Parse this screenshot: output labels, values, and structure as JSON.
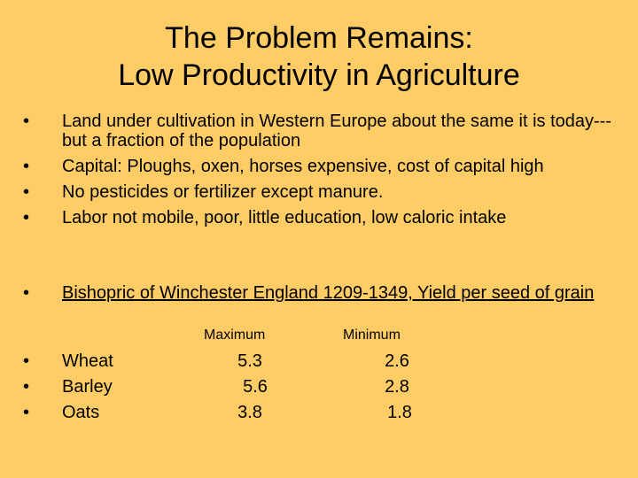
{
  "slide": {
    "title_line1": "The Problem Remains:",
    "title_line2": "Low Productivity in Agriculture",
    "bullets": [
      {
        "text": "Land under cultivation in Western Europe about the same it is today---but a fraction of the population"
      },
      {
        "text": "Capital: Ploughs, oxen, horses expensive, cost of capital high"
      },
      {
        "text": "No pesticides or fertilizer except manure."
      },
      {
        "text": "Labor not mobile, poor, little education, low caloric intake"
      }
    ],
    "bullet_char": "•",
    "winchester": "Bishopric of Winchester England 1209-1349, Yield per seed of grain",
    "table": {
      "headers": {
        "max": "Maximum",
        "min": "Minimum"
      },
      "rows": [
        {
          "crop": "Wheat",
          "max": "5.3",
          "min": "2.6"
        },
        {
          "crop": "Barley",
          "max": "5.6",
          "min": "2.8"
        },
        {
          "crop": "Oats",
          "max": "3.8",
          "min": "1.8"
        }
      ]
    },
    "colors": {
      "background": "#FFCC66",
      "text": "#000000"
    }
  }
}
